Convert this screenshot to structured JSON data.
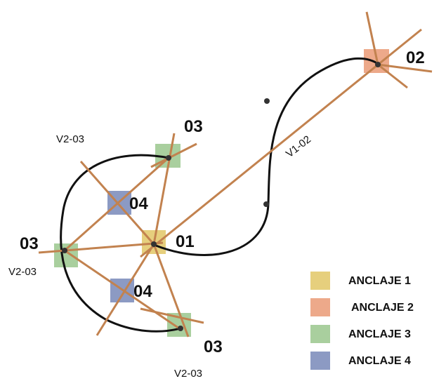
{
  "nodes": {
    "n01": {
      "label": "01",
      "anchor": "ANCLAJE 1"
    },
    "n02": {
      "label": "02",
      "anchor": "ANCLAJE 2"
    },
    "n03_top": {
      "label": "03",
      "anchor": "ANCLAJE 3"
    },
    "n03_left": {
      "label": "03",
      "anchor": "ANCLAJE 3"
    },
    "n03_bottom": {
      "label": "03",
      "anchor": "ANCLAJE 3"
    },
    "n04_upper": {
      "label": "04",
      "anchor": "ANCLAJE 4"
    },
    "n04_lower": {
      "label": "04",
      "anchor": "ANCLAJE 4"
    }
  },
  "cable_labels": {
    "v1_02": "V1-02",
    "v2_03_top": "V2-03",
    "v2_03_left": "V2-03",
    "v2_03_bottom": "V2-03"
  },
  "legend": [
    {
      "label": "ANCLAJE 1",
      "color": "#e6cf7d"
    },
    {
      "label": "ANCLAJE 2",
      "color": "#eda98a"
    },
    {
      "label": "ANCLAJE 3",
      "color": "#a9cf9e"
    },
    {
      "label": "ANCLAJE 4",
      "color": "#8c9ac3"
    }
  ],
  "colors": {
    "rope": "#c2824f",
    "curve": "#111111"
  }
}
